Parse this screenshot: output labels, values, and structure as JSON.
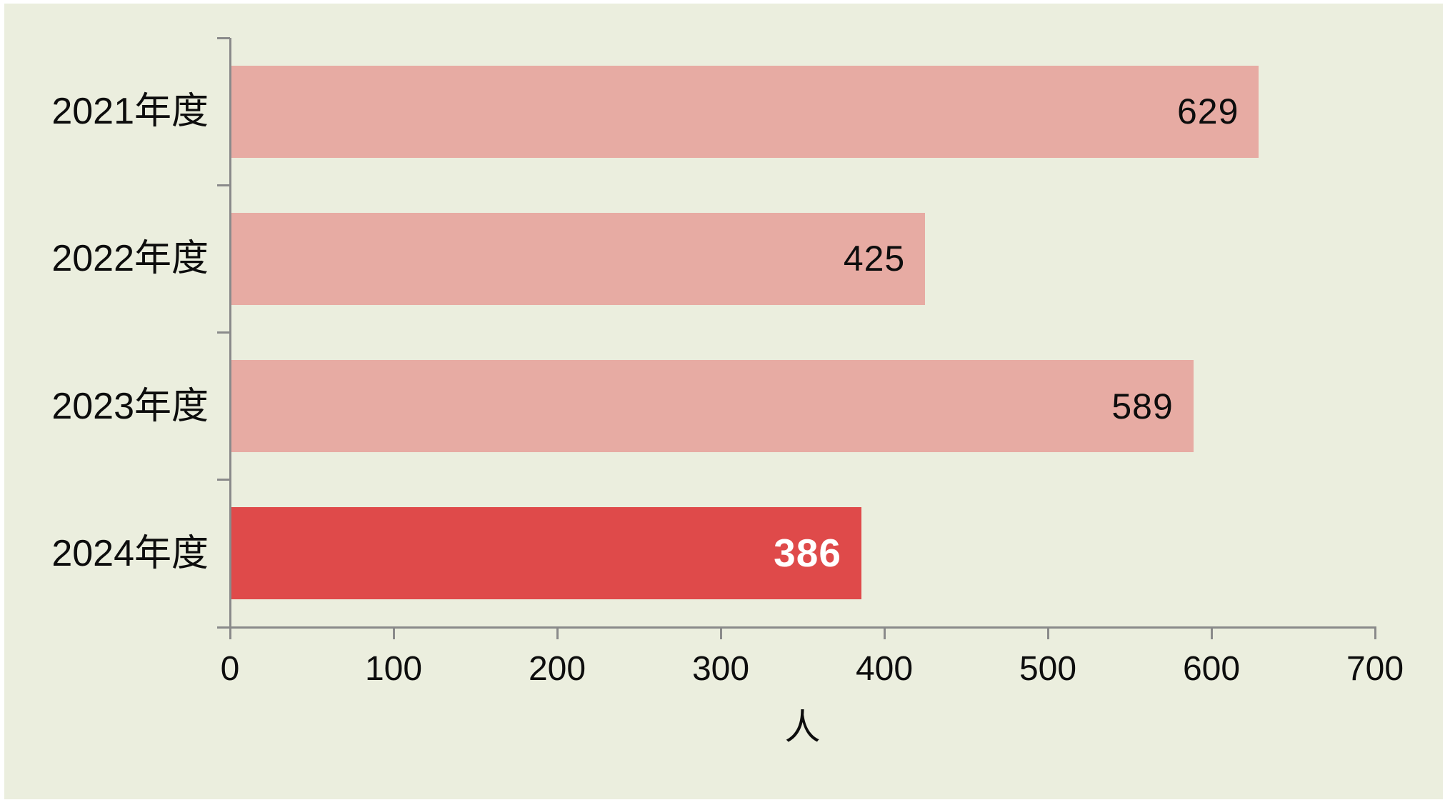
{
  "chart_data": {
    "type": "bar",
    "orientation": "horizontal",
    "title": "",
    "categories": [
      "2021年度",
      "2022年度",
      "2023年度",
      "2024年度"
    ],
    "values": [
      629,
      425,
      589,
      386
    ],
    "value_labels": [
      "629",
      "425",
      "589",
      "386"
    ],
    "highlight_index": 3,
    "xlabel": "人",
    "ylabel": "",
    "xlim": [
      0,
      700
    ],
    "x_ticks": [
      0,
      100,
      200,
      300,
      400,
      500,
      600,
      700
    ],
    "x_tick_labels": [
      "0",
      "100",
      "200",
      "300",
      "400",
      "500",
      "600",
      "700"
    ],
    "grid": false,
    "legend": false,
    "colors": {
      "page": "#FFFFFF",
      "background": "#EBEEDE",
      "bar": "#E7ABA3",
      "bar_highlight": "#DF4A4A",
      "value_label": "#0D0D0D",
      "value_label_highlight": "#FFFFFF",
      "category_label": "#0D0D0D",
      "tick_label": "#0D0D0D",
      "axis": "#8A8A8A"
    }
  }
}
